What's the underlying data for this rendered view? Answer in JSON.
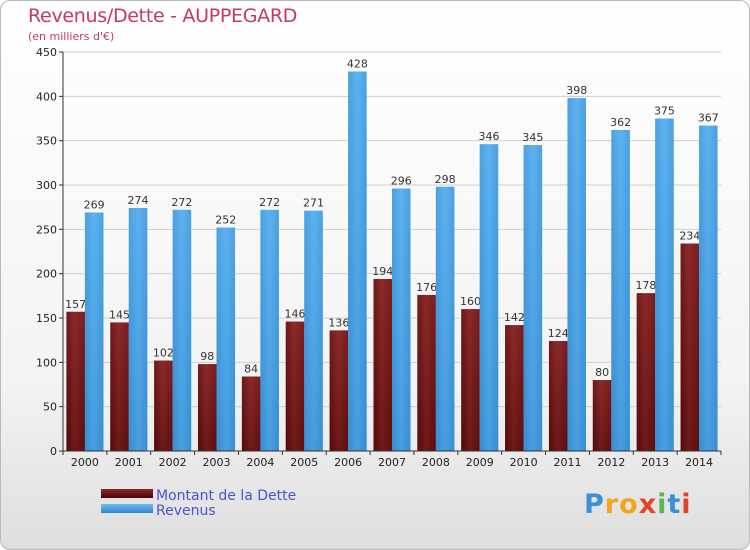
{
  "title": "Revenus/Dette - AUPPEGARD",
  "subtitle": "(en milliers d'€)",
  "brand": {
    "name": "Proxiti",
    "letters": [
      "P",
      "r",
      "o",
      "x",
      "i",
      "t",
      "i"
    ]
  },
  "colors": {
    "dette": "#7a1a1a",
    "revenus": "#4aa3e6",
    "title": "#c4366c",
    "legend_text": "#4a53d6"
  },
  "chart_data": {
    "type": "bar",
    "title": "Revenus/Dette - AUPPEGARD",
    "ylabel": "(en milliers d'€)",
    "xlabel": "",
    "ylim": [
      0,
      450
    ],
    "yticks": [
      0,
      50,
      100,
      150,
      200,
      250,
      300,
      350,
      400,
      450
    ],
    "categories": [
      "2000",
      "2001",
      "2002",
      "2003",
      "2004",
      "2005",
      "2006",
      "2007",
      "2008",
      "2009",
      "2010",
      "2011",
      "2012",
      "2013",
      "2014"
    ],
    "series": [
      {
        "name": "Montant de la Dette",
        "values": [
          157,
          145,
          102,
          98,
          84,
          146,
          136,
          194,
          176,
          160,
          142,
          124,
          80,
          178,
          234
        ]
      },
      {
        "name": "Revenus",
        "values": [
          269,
          274,
          272,
          252,
          272,
          271,
          428,
          296,
          298,
          346,
          345,
          398,
          362,
          375,
          367
        ]
      }
    ],
    "legend_position": "bottom-left",
    "grid": true
  }
}
